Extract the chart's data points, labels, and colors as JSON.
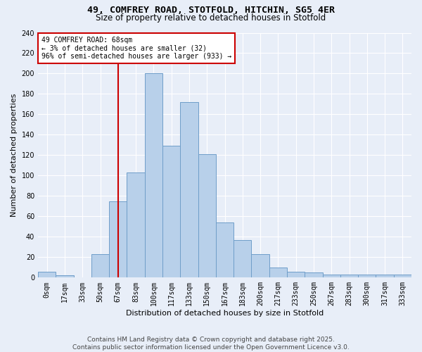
{
  "title_line1": "49, COMFREY ROAD, STOTFOLD, HITCHIN, SG5 4ER",
  "title_line2": "Size of property relative to detached houses in Stotfold",
  "xlabel": "Distribution of detached houses by size in Stotfold",
  "ylabel": "Number of detached properties",
  "bin_labels": [
    "0sqm",
    "17sqm",
    "33sqm",
    "50sqm",
    "67sqm",
    "83sqm",
    "100sqm",
    "117sqm",
    "133sqm",
    "150sqm",
    "167sqm",
    "183sqm",
    "200sqm",
    "217sqm",
    "233sqm",
    "250sqm",
    "267sqm",
    "283sqm",
    "300sqm",
    "317sqm",
    "333sqm"
  ],
  "bar_heights": [
    6,
    2,
    0,
    23,
    75,
    103,
    200,
    129,
    172,
    121,
    54,
    37,
    23,
    10,
    6,
    5,
    3,
    3,
    3,
    3,
    3
  ],
  "bar_color": "#b8d0ea",
  "bar_edgecolor": "#6f9ec9",
  "red_line_index": 4,
  "annotation_text": "49 COMFREY ROAD: 68sqm\n← 3% of detached houses are smaller (32)\n96% of semi-detached houses are larger (933) →",
  "annotation_box_color": "#ffffff",
  "annotation_box_edgecolor": "#cc0000",
  "vline_color": "#cc0000",
  "ylim": [
    0,
    240
  ],
  "yticks": [
    0,
    20,
    40,
    60,
    80,
    100,
    120,
    140,
    160,
    180,
    200,
    220,
    240
  ],
  "footer_text": "Contains HM Land Registry data © Crown copyright and database right 2025.\nContains public sector information licensed under the Open Government Licence v3.0.",
  "bg_color": "#e8eef8",
  "plot_bg_color": "#e8eef8",
  "grid_color": "#ffffff",
  "title_fontsize": 9.5,
  "subtitle_fontsize": 8.5,
  "axis_label_fontsize": 8,
  "tick_fontsize": 7,
  "annotation_fontsize": 7,
  "footer_fontsize": 6.5
}
